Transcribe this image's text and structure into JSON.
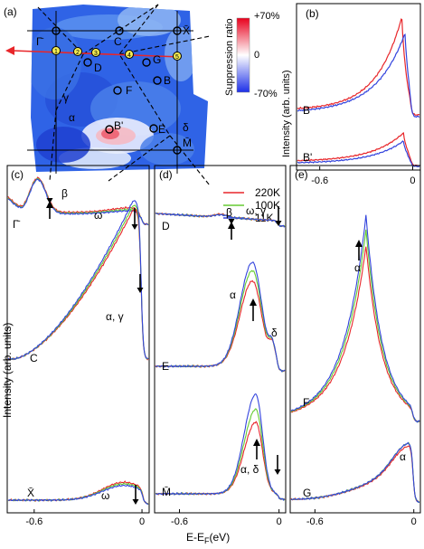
{
  "chart_data": [
    {
      "id": "a",
      "type": "heatmap",
      "panel_label": "(a)",
      "colorbar": {
        "title": "Suppression ratio",
        "max_label": "+70%",
        "mid_label": "0",
        "min_label": "-70%"
      },
      "points": [
        {
          "label": "Γ̄"
        },
        {
          "label": "C"
        },
        {
          "label": "X̄"
        },
        {
          "label": "D"
        },
        {
          "label": "G"
        },
        {
          "label": "B"
        },
        {
          "label": "F"
        },
        {
          "label": "B'"
        },
        {
          "label": "E"
        },
        {
          "label": "M̄"
        }
      ],
      "cut_numbers": [
        "1",
        "2",
        "3",
        "4",
        "5"
      ],
      "region_labels": [
        "γ",
        "α",
        "δ"
      ]
    },
    {
      "id": "b",
      "type": "line",
      "panel_label": "(b)",
      "ylabel": "Intensity (arb. units)",
      "xticks": [
        "-0.6",
        "0"
      ],
      "xlim": [
        -0.75,
        0.05
      ],
      "curves": [
        {
          "label": "B"
        },
        {
          "label": "B'"
        }
      ]
    },
    {
      "id": "c",
      "type": "line",
      "panel_label": "(c)",
      "xticks": [
        "-0.6",
        "0"
      ],
      "curves": [
        {
          "label": "Γ̄"
        },
        {
          "label": "C"
        },
        {
          "label": "X̄"
        }
      ],
      "annotations": [
        "β",
        "ω",
        "α, γ",
        "ω"
      ]
    },
    {
      "id": "d",
      "type": "line",
      "panel_label": "(d)",
      "xticks": [
        "-0.6",
        "0"
      ],
      "curves": [
        {
          "label": "D"
        },
        {
          "label": "E"
        },
        {
          "label": "M̄"
        }
      ],
      "annotations": [
        "β",
        "ω, γ",
        "α",
        "δ",
        "α, δ"
      ]
    },
    {
      "id": "e",
      "type": "line",
      "panel_label": "(e)",
      "xticks": [
        "-0.6",
        "0"
      ],
      "curves": [
        {
          "label": "F"
        },
        {
          "label": "G"
        }
      ],
      "annotations": [
        "α",
        "α"
      ]
    }
  ],
  "legend": [
    {
      "name": "220K",
      "color": "#e8262a"
    },
    {
      "name": "100K",
      "color": "#66cc33"
    },
    {
      "name": "11K",
      "color": "#3344dd"
    }
  ],
  "shared_axes": {
    "ylabel": "Intensity (arb. units)",
    "xlabel": "E-E_F(eV)",
    "xlabel_main": "E-E",
    "xlabel_sub": "F",
    "xlabel_unit": "(eV)"
  }
}
